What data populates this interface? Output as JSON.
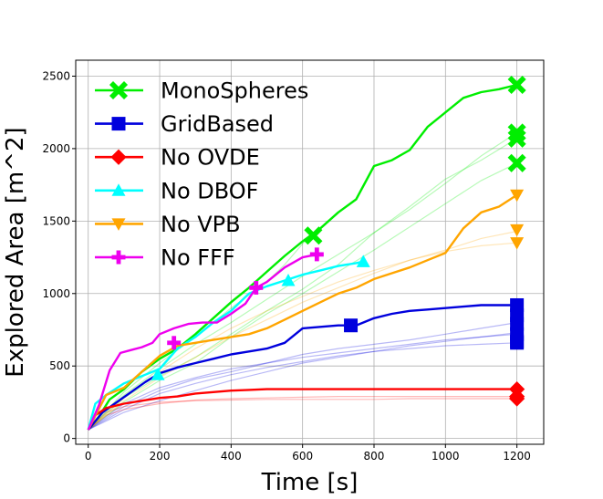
{
  "chart_data": {
    "type": "line",
    "title": "",
    "xlabel": "Time [s]",
    "ylabel": "Explored Area [m^2]",
    "xlim": [
      -35,
      1275
    ],
    "ylim": [
      -40,
      2610
    ],
    "xticks": [
      0,
      200,
      400,
      600,
      800,
      1000,
      1200
    ],
    "yticks": [
      0,
      500,
      1000,
      1500,
      2000,
      2500
    ],
    "grid": true,
    "legend_position": "top-left",
    "series": [
      {
        "name": "MonoSpheres",
        "color": "#00ee00",
        "marker": "x",
        "x": [
          0,
          30,
          60,
          100,
          150,
          200,
          250,
          300,
          350,
          400,
          450,
          500,
          550,
          600,
          650,
          700,
          750,
          800,
          850,
          900,
          950,
          1000,
          1050,
          1100,
          1150,
          1200
        ],
        "y": [
          60,
          150,
          270,
          340,
          460,
          550,
          620,
          720,
          830,
          940,
          1040,
          1150,
          1260,
          1360,
          1450,
          1560,
          1650,
          1880,
          1920,
          1990,
          2150,
          2250,
          2350,
          2390,
          2410,
          2440
        ],
        "faint": [
          {
            "x": [
              0,
              100,
              200,
              300,
              400,
              500,
              600,
              700,
              800,
              900,
              1000,
              1100,
              1200
            ],
            "y": [
              60,
              300,
              480,
              650,
              800,
              960,
              1120,
              1270,
              1420,
              1580,
              1760,
              1950,
              2110
            ]
          },
          {
            "x": [
              0,
              100,
              200,
              300,
              400,
              500,
              600,
              700,
              800,
              900,
              1000,
              1100,
              1200
            ],
            "y": [
              60,
              280,
              430,
              560,
              720,
              880,
              1030,
              1200,
              1420,
              1600,
              1790,
              1920,
              2070
            ]
          },
          {
            "x": [
              0,
              100,
              200,
              300,
              400,
              500,
              600,
              700,
              800,
              900,
              1000,
              1100,
              1200
            ],
            "y": [
              60,
              250,
              400,
              520,
              700,
              860,
              1000,
              1150,
              1300,
              1460,
              1620,
              1780,
              1900
            ]
          },
          {
            "x": [
              0,
              100,
              200,
              300,
              400,
              500,
              550,
              620
            ],
            "y": [
              60,
              320,
              520,
              700,
              900,
              1080,
              1200,
              1400
            ]
          }
        ]
      },
      {
        "name": "GridBased",
        "color": "#0000dd",
        "marker": "square",
        "x": [
          0,
          40,
          80,
          120,
          160,
          200,
          250,
          300,
          350,
          400,
          450,
          500,
          550,
          600,
          650,
          700,
          750,
          800,
          850,
          900,
          950,
          1000,
          1050,
          1100,
          1150,
          1200
        ],
        "y": [
          60,
          180,
          250,
          320,
          390,
          450,
          490,
          520,
          550,
          580,
          600,
          620,
          660,
          760,
          770,
          780,
          780,
          830,
          860,
          880,
          890,
          900,
          910,
          920,
          920,
          920
        ],
        "faint": [
          {
            "x": [
              0,
              100,
              200,
              300,
              400,
              500,
              600,
              700,
              800,
              900,
              1000,
              1100,
              1200
            ],
            "y": [
              60,
              240,
              350,
              420,
              480,
              520,
              560,
              590,
              620,
              650,
              680,
              700,
              720
            ]
          },
          {
            "x": [
              0,
              100,
              200,
              300,
              400,
              500,
              600,
              700,
              800,
              900,
              1000,
              1100,
              1200
            ],
            "y": [
              60,
              200,
              310,
              380,
              440,
              490,
              530,
              570,
              600,
              620,
              640,
              650,
              660
            ]
          },
          {
            "x": [
              0,
              100,
              200,
              300,
              400,
              500,
              600,
              700,
              800,
              900,
              1000,
              1100,
              1200
            ],
            "y": [
              60,
              180,
              260,
              330,
              400,
              460,
              520,
              560,
              600,
              640,
              670,
              700,
              730
            ]
          },
          {
            "x": [
              0,
              100,
              200,
              300,
              400,
              500,
              600,
              700,
              800,
              900,
              1000,
              1100,
              1200
            ],
            "y": [
              60,
              220,
              330,
              410,
              460,
              520,
              580,
              620,
              650,
              680,
              720,
              760,
              800
            ]
          }
        ]
      },
      {
        "name": "No OVDE",
        "color": "#ff0000",
        "marker": "diamond",
        "x": [
          0,
          20,
          50,
          100,
          150,
          200,
          250,
          300,
          350,
          400,
          450,
          500,
          600,
          700,
          800,
          900,
          1000,
          1100,
          1200
        ],
        "y": [
          60,
          160,
          210,
          240,
          260,
          280,
          290,
          310,
          320,
          330,
          335,
          340,
          340,
          340,
          340,
          340,
          340,
          340,
          340
        ],
        "faint": [
          {
            "x": [
              0,
              50,
              100,
              200,
              300,
              400,
              500,
              600,
              700,
              800,
              900,
              1000,
              1100,
              1200
            ],
            "y": [
              60,
              180,
              220,
              250,
              260,
              265,
              270,
              270,
              270,
              270,
              275,
              275,
              275,
              275
            ]
          },
          {
            "x": [
              0,
              50,
              100,
              200,
              300,
              400,
              500,
              600,
              700,
              800,
              900,
              1000,
              1100,
              1200
            ],
            "y": [
              60,
              160,
              200,
              240,
              265,
              275,
              280,
              285,
              290,
              290,
              290,
              290,
              290,
              290
            ]
          }
        ]
      },
      {
        "name": "No DBOF",
        "color": "#00ffff",
        "marker": "triangle-up",
        "x": [
          0,
          20,
          50,
          100,
          150,
          200,
          250,
          300,
          350,
          400,
          450,
          500,
          550,
          600,
          650,
          700,
          750,
          770
        ],
        "y": [
          60,
          240,
          300,
          380,
          430,
          480,
          620,
          700,
          800,
          880,
          1000,
          1050,
          1090,
          1130,
          1160,
          1190,
          1210,
          1220
        ],
        "faint": []
      },
      {
        "name": "No VPB",
        "color": "#ffa500",
        "marker": "triangle-down",
        "x": [
          0,
          50,
          100,
          150,
          200,
          250,
          300,
          350,
          400,
          450,
          500,
          550,
          600,
          650,
          700,
          750,
          800,
          850,
          900,
          950,
          1000,
          1050,
          1100,
          1150,
          1200
        ],
        "y": [
          60,
          300,
          350,
          460,
          570,
          640,
          660,
          680,
          700,
          720,
          760,
          820,
          880,
          940,
          1000,
          1040,
          1100,
          1140,
          1180,
          1230,
          1280,
          1450,
          1560,
          1600,
          1680
        ],
        "faint": [
          {
            "x": [
              0,
              100,
              200,
              300,
              400,
              500,
              600,
              700,
              800,
              900,
              1000,
              1100,
              1200
            ],
            "y": [
              60,
              280,
              460,
              620,
              760,
              880,
              980,
              1080,
              1160,
              1230,
              1290,
              1330,
              1350
            ]
          },
          {
            "x": [
              0,
              100,
              200,
              300,
              400,
              500,
              600,
              700,
              800,
              900,
              1000,
              1100,
              1200
            ],
            "y": [
              60,
              260,
              420,
              560,
              700,
              820,
              940,
              1040,
              1140,
              1230,
              1300,
              1380,
              1430
            ]
          }
        ]
      },
      {
        "name": "No FFF",
        "color": "#ee00ee",
        "marker": "plus",
        "x": [
          0,
          30,
          60,
          90,
          120,
          150,
          180,
          200,
          240,
          280,
          320,
          360,
          400,
          440,
          470,
          500,
          550,
          600,
          640
        ],
        "y": [
          60,
          230,
          470,
          590,
          610,
          630,
          660,
          720,
          760,
          790,
          800,
          800,
          860,
          930,
          1040,
          1080,
          1180,
          1250,
          1270
        ],
        "faint": []
      }
    ],
    "end_markers": [
      {
        "series": "MonoSpheres",
        "points": [
          [
            1200,
            2440
          ],
          [
            1200,
            2110
          ],
          [
            1200,
            2070
          ],
          [
            1200,
            1900
          ],
          [
            630,
            1400
          ]
        ]
      },
      {
        "series": "GridBased",
        "points": [
          [
            1200,
            920
          ],
          [
            1200,
            850
          ],
          [
            1200,
            790
          ],
          [
            1200,
            720
          ],
          [
            1200,
            670
          ],
          [
            1200,
            660
          ],
          [
            735,
            780
          ]
        ]
      },
      {
        "series": "No OVDE",
        "points": [
          [
            1200,
            340
          ],
          [
            1200,
            290
          ],
          [
            1200,
            275
          ]
        ]
      },
      {
        "series": "No DBOF",
        "points": [
          [
            770,
            1220
          ],
          [
            560,
            1090
          ],
          [
            195,
            440
          ]
        ]
      },
      {
        "series": "No VPB",
        "points": [
          [
            1200,
            1680
          ],
          [
            1200,
            1440
          ],
          [
            1200,
            1350
          ]
        ]
      },
      {
        "series": "No FFF",
        "points": [
          [
            640,
            1270
          ],
          [
            470,
            1040
          ],
          [
            240,
            660
          ]
        ]
      }
    ]
  }
}
